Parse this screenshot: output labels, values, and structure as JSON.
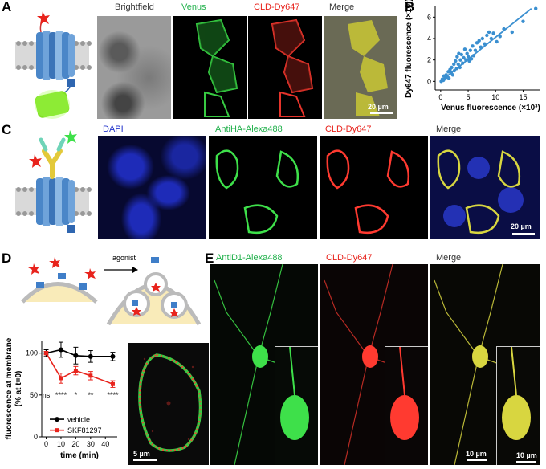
{
  "panels": {
    "a": {
      "label": "A",
      "titles": [
        "Brightfield",
        "Venus",
        "CLD-Dy647",
        "Merge"
      ],
      "scalebar": "20 µm"
    },
    "b": {
      "label": "B"
    },
    "c": {
      "label": "C",
      "titles": [
        "DAPI",
        "AntiHA-Alexa488",
        "CLD-Dy647",
        "Merge"
      ],
      "scalebar": "20 µm"
    },
    "d": {
      "label": "D",
      "agonist": "agonist",
      "scalebar": "5 µm"
    },
    "e": {
      "label": "E",
      "titles": [
        "AntiD1-Alexa488",
        "CLD-Dy647",
        "Merge"
      ],
      "scalebar_1": "10 µm",
      "scalebar_2": "10 µm"
    }
  },
  "colors": {
    "green": "#22b14c",
    "red": "#e8231c",
    "blue": "#2233cc",
    "scatter": "#3a8fd0"
  },
  "chart_data": [
    {
      "type": "scatter",
      "xlabel": "Venus fluorescence (×10³)",
      "ylabel": "Dy647 fluorescence (×10³)",
      "xlim": [
        -1,
        18
      ],
      "ylim": [
        -0.8,
        7
      ],
      "xticks": [
        "0",
        "5",
        "10",
        "15"
      ],
      "yticks": [
        "0",
        "2",
        "4",
        "6"
      ],
      "points": [
        [
          0.1,
          0.0
        ],
        [
          0.3,
          0.2
        ],
        [
          0.5,
          0.1
        ],
        [
          0.6,
          0.5
        ],
        [
          0.8,
          0.3
        ],
        [
          1.0,
          0.6
        ],
        [
          1.2,
          0.4
        ],
        [
          1.4,
          0.9
        ],
        [
          1.5,
          0.3
        ],
        [
          1.7,
          1.1
        ],
        [
          1.9,
          0.8
        ],
        [
          2.0,
          1.3
        ],
        [
          2.2,
          0.6
        ],
        [
          2.4,
          1.6
        ],
        [
          2.5,
          1.0
        ],
        [
          2.7,
          1.9
        ],
        [
          2.9,
          1.2
        ],
        [
          3.0,
          2.3
        ],
        [
          3.2,
          1.6
        ],
        [
          3.3,
          2.6
        ],
        [
          3.5,
          1.3
        ],
        [
          3.6,
          2.0
        ],
        [
          3.8,
          2.5
        ],
        [
          4.0,
          1.7
        ],
        [
          4.2,
          2.2
        ],
        [
          4.4,
          3.0
        ],
        [
          4.6,
          2.0
        ],
        [
          4.8,
          2.6
        ],
        [
          5.0,
          2.3
        ],
        [
          5.2,
          1.9
        ],
        [
          5.4,
          2.9
        ],
        [
          5.6,
          2.1
        ],
        [
          5.8,
          3.3
        ],
        [
          6.0,
          2.4
        ],
        [
          6.3,
          2.9
        ],
        [
          6.6,
          3.6
        ],
        [
          7.0,
          3.8
        ],
        [
          7.3,
          3.2
        ],
        [
          7.6,
          4.0
        ],
        [
          8.0,
          3.5
        ],
        [
          8.4,
          4.3
        ],
        [
          8.8,
          4.6
        ],
        [
          9.2,
          4.0
        ],
        [
          9.6,
          4.5
        ],
        [
          10.2,
          3.7
        ],
        [
          10.8,
          4.2
        ],
        [
          11.5,
          4.9
        ],
        [
          13.0,
          4.6
        ],
        [
          15.0,
          5.6
        ],
        [
          17.3,
          6.8
        ]
      ],
      "fit_line": [
        [
          0,
          0
        ],
        [
          16.5,
          6.8
        ]
      ]
    },
    {
      "type": "line",
      "xlabel": "time (min)",
      "ylabel": "fluorescence at membrane (% at t=0)",
      "xlim": [
        -3,
        48
      ],
      "ylim": [
        0,
        115
      ],
      "xticks": [
        "0",
        "10",
        "20",
        "30",
        "40"
      ],
      "yticks": [
        "0",
        "50",
        "100"
      ],
      "series": [
        {
          "name": "vehicle",
          "color": "#000000",
          "x": [
            0,
            10,
            20,
            30,
            45
          ],
          "y": [
            100,
            104,
            97,
            96,
            96
          ],
          "err": [
            4,
            9,
            10,
            7,
            5
          ]
        },
        {
          "name": "SKF81297",
          "color": "#e8231c",
          "x": [
            0,
            10,
            20,
            30,
            45
          ],
          "y": [
            100,
            70,
            79,
            73,
            63
          ],
          "err": [
            2,
            6,
            5,
            5,
            4
          ]
        }
      ],
      "annotations": [
        "ns",
        "****",
        "*",
        "**",
        "****"
      ]
    }
  ]
}
